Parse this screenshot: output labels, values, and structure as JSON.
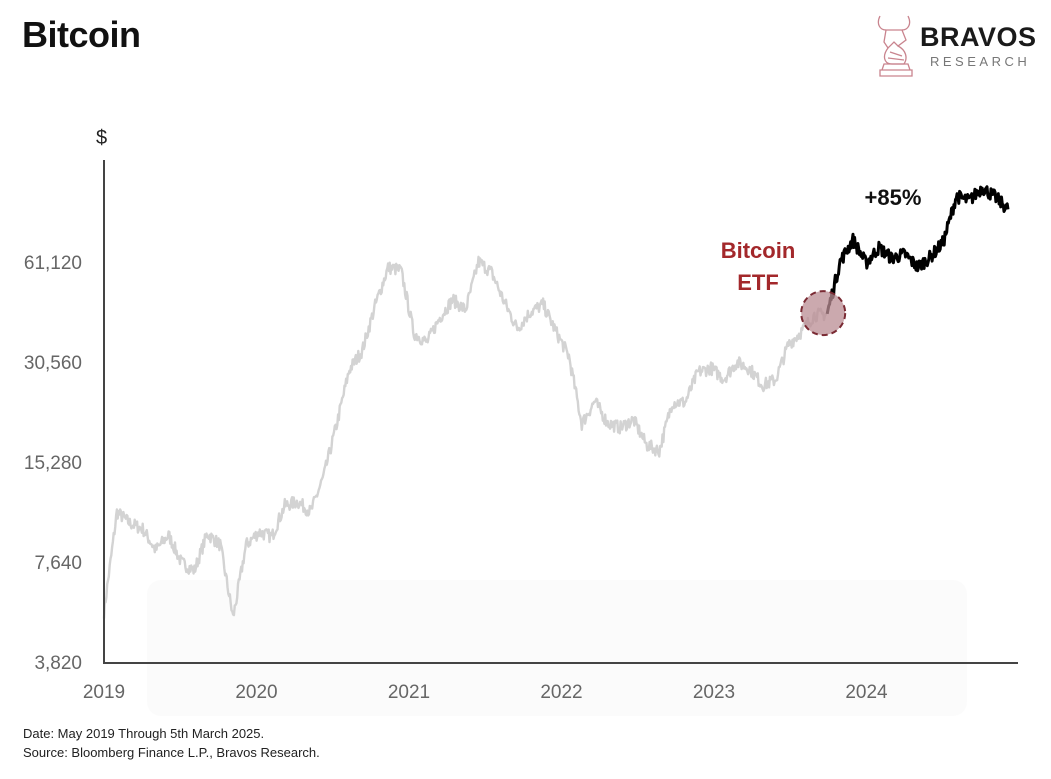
{
  "header": {
    "title": "Bitcoin"
  },
  "logo": {
    "name": "BRAVOS",
    "sub": "RESEARCH",
    "color": "#c9848e"
  },
  "footer": {
    "date_note": "Date: May 2019 Through 5th March 2025.",
    "source": "Source: Bloomberg Finance L.P., Bravos Research."
  },
  "chart_data": {
    "type": "line",
    "title": "Bitcoin",
    "ylabel": "$",
    "xlabel": "",
    "y_scale": "log",
    "ylim": [
      3820,
      110000
    ],
    "xlim": [
      "2019-05",
      "2025-03"
    ],
    "y_ticks": [
      3820,
      7640,
      15280,
      30560,
      61120
    ],
    "y_tick_labels": [
      "3,820",
      "7,640",
      "15,280",
      "30,560",
      "61,120"
    ],
    "x_tick_labels": [
      "2019",
      "2020",
      "2021",
      "2022",
      "2023",
      "2024"
    ],
    "grid": false,
    "colors": {
      "pre_etf": "#d3d3d3",
      "post_etf": "#000000",
      "annotation": "#a3282b",
      "marker_fill": "#b98c93"
    },
    "series": [
      {
        "x": [
          "2019-05",
          "2019-06",
          "2019-07",
          "2019-08",
          "2019-09",
          "2019-10",
          "2019-11",
          "2019-12",
          "2020-01",
          "2020-02",
          "2020-03",
          "2020-04",
          "2020-05",
          "2020-06",
          "2020-07",
          "2020-08",
          "2020-09",
          "2020-10",
          "2020-11",
          "2020-12",
          "2021-01",
          "2021-02",
          "2021-03",
          "2021-04",
          "2021-05",
          "2021-06",
          "2021-07",
          "2021-08",
          "2021-09",
          "2021-10",
          "2021-11",
          "2021-12",
          "2022-01",
          "2022-02",
          "2022-03",
          "2022-04",
          "2022-05",
          "2022-06",
          "2022-07",
          "2022-08",
          "2022-09",
          "2022-10",
          "2022-11",
          "2022-12",
          "2023-01",
          "2023-02",
          "2023-03",
          "2023-04",
          "2023-05",
          "2023-06",
          "2023-07",
          "2023-08",
          "2023-09",
          "2023-10",
          "2023-11",
          "2023-12",
          "2024-01",
          "2024-02",
          "2024-03",
          "2024-04",
          "2024-05",
          "2024-06",
          "2024-07",
          "2024-08",
          "2024-09",
          "2024-10",
          "2024-11",
          "2024-12",
          "2025-01",
          "2025-02",
          "2025-03"
        ],
        "values": [
          5400,
          10800,
          10000,
          9600,
          8300,
          9200,
          7600,
          7200,
          9300,
          8600,
          5200,
          8600,
          9400,
          9100,
          11300,
          11600,
          10800,
          13800,
          19700,
          29000,
          33100,
          45200,
          58800,
          57700,
          37300,
          35000,
          41500,
          47100,
          43800,
          61300,
          57000,
          46300,
          38500,
          43200,
          45500,
          37700,
          31800,
          19900,
          23300,
          20000,
          19400,
          20500,
          17200,
          16500,
          23100,
          23100,
          28500,
          29300,
          27200,
          30500,
          29200,
          26000,
          27000,
          34500,
          37700,
          42300,
          42600,
          61200,
          71300,
          60600,
          67500,
          62700,
          64600,
          59000,
          63300,
          70200,
          96400,
          93400,
          102400,
          96000,
          88000
        ]
      }
    ],
    "annotations": [
      {
        "text": "Bitcoin",
        "x": "2024-01"
      },
      {
        "text": "ETF",
        "x": "2024-01"
      },
      {
        "text": "+85%",
        "x": "2024-06"
      }
    ],
    "etf_date": "2024-01"
  }
}
